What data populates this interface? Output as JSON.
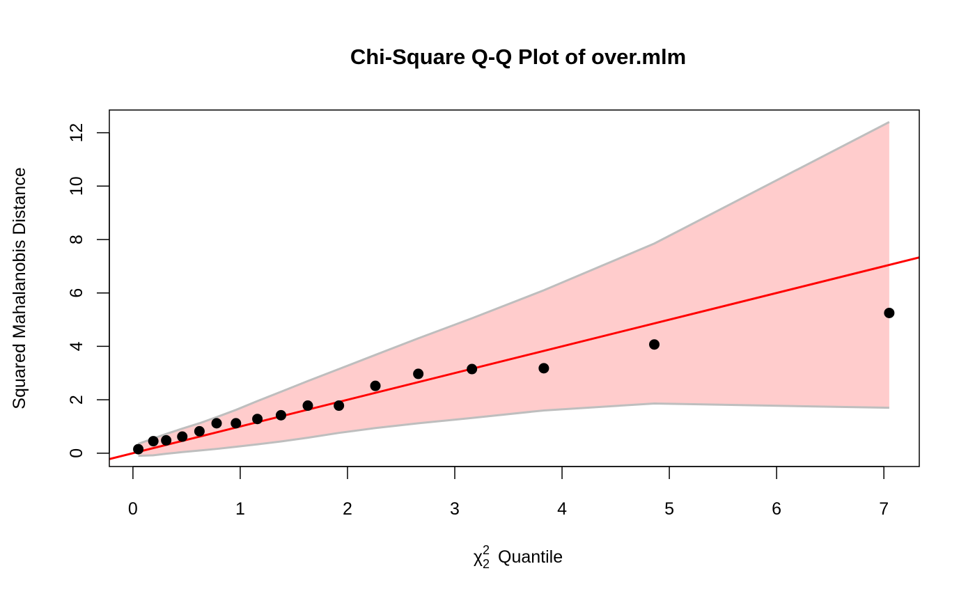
{
  "chart_data": {
    "type": "scatter",
    "title": "Chi-Square Q-Q Plot of over.mlm",
    "xlabel": {
      "symbol": "χ",
      "superscript": "2",
      "subscript": "2",
      "text": "Quantile"
    },
    "ylabel": "Squared Mahalanobis Distance",
    "xlim": [
      -0.22,
      7.33
    ],
    "ylim": [
      -0.5,
      12.85
    ],
    "xticks": [
      "0",
      "1",
      "2",
      "3",
      "4",
      "5",
      "6",
      "7"
    ],
    "yticks": [
      "0",
      "2",
      "4",
      "6",
      "8",
      "10",
      "12"
    ],
    "points": {
      "x": [
        0.05,
        0.19,
        0.31,
        0.46,
        0.62,
        0.78,
        0.96,
        1.16,
        1.38,
        1.63,
        1.92,
        2.26,
        2.66,
        3.16,
        3.83,
        4.86,
        7.05
      ],
      "y": [
        0.15,
        0.45,
        0.48,
        0.62,
        0.82,
        1.12,
        1.12,
        1.28,
        1.42,
        1.78,
        1.78,
        2.52,
        2.97,
        3.15,
        3.18,
        4.07,
        5.25
      ],
      "color": "#000000"
    },
    "reference_line": {
      "intercept": 0.0,
      "slope": 1.0,
      "color": "#ff0000"
    },
    "envelope": {
      "x": [
        0.05,
        0.19,
        0.31,
        0.46,
        0.62,
        0.78,
        0.96,
        1.16,
        1.38,
        1.63,
        1.92,
        2.26,
        2.66,
        3.16,
        3.83,
        4.86,
        7.05
      ],
      "upper": [
        0.35,
        0.55,
        0.72,
        0.92,
        1.12,
        1.35,
        1.62,
        1.95,
        2.3,
        2.7,
        3.15,
        3.68,
        4.3,
        5.05,
        6.1,
        7.85,
        12.4
      ],
      "lower": [
        -0.1,
        -0.08,
        -0.02,
        0.04,
        0.1,
        0.16,
        0.24,
        0.33,
        0.44,
        0.58,
        0.76,
        0.94,
        1.12,
        1.32,
        1.6,
        1.86,
        1.7
      ],
      "fill_color": "#ffcccc",
      "line_color": "#bebebe"
    },
    "grid": false,
    "legend": "none"
  }
}
